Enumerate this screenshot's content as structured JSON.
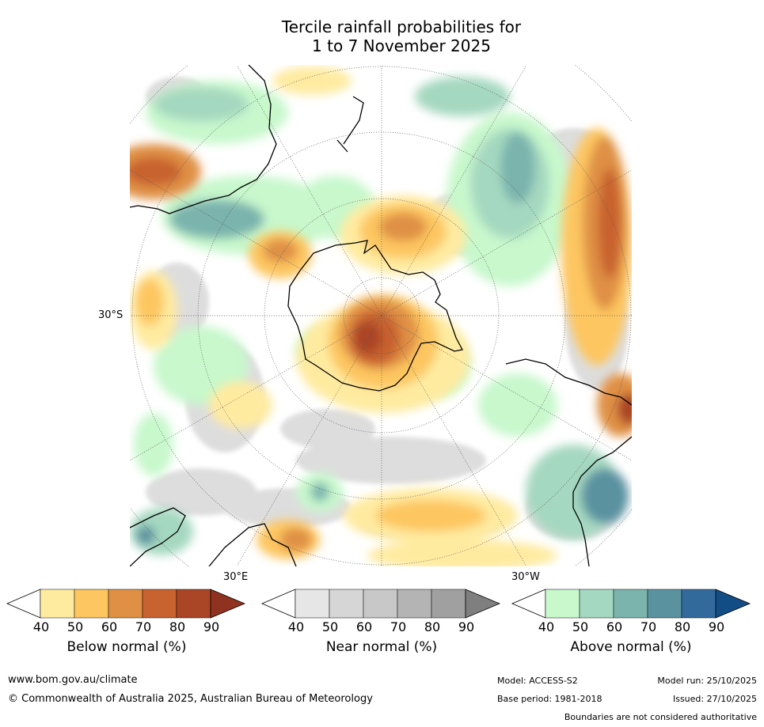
{
  "title": {
    "line1": "Tercile rainfall probabilities for",
    "line2": "1 to 7 November 2025"
  },
  "map": {
    "lat_label": "30°S",
    "lon_label_east": "30°E",
    "lon_label_west": "30°W"
  },
  "colorbars": {
    "below": {
      "label": "Below normal (%)",
      "ticks": [
        "40",
        "50",
        "60",
        "70",
        "80",
        "90"
      ],
      "colors": [
        "#ffffff",
        "#ffeba0",
        "#fdc661",
        "#df9044",
        "#c8622f",
        "#aa4526",
        "#8f3220"
      ]
    },
    "near": {
      "label": "Near normal (%)",
      "ticks": [
        "40",
        "50",
        "60",
        "70",
        "80",
        "90"
      ],
      "colors": [
        "#ffffff",
        "#e6e6e6",
        "#d6d6d6",
        "#c8c8c8",
        "#b4b4b4",
        "#a0a0a0",
        "#7f7f7f"
      ]
    },
    "above": {
      "label": "Above normal (%)",
      "ticks": [
        "40",
        "50",
        "60",
        "70",
        "80",
        "90"
      ],
      "colors": [
        "#ffffff",
        "#c8f8cc",
        "#a5d8c0",
        "#7ab4ad",
        "#5a92a0",
        "#326a9c",
        "#134d86"
      ]
    }
  },
  "footer": {
    "website": "www.bom.gov.au/climate",
    "copyright": "© Commonwealth of Australia 2025, Australian Bureau of Meteorology",
    "model": "Model: ACCESS-S2",
    "model_run": "Model run: 25/10/2025",
    "base_period": "Base period: 1981-2018",
    "issued": "Issued: 27/10/2025",
    "disclaimer": "Boundaries are not considered authoritative"
  }
}
